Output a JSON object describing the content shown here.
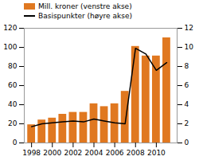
{
  "chart_data": {
    "type": "bar",
    "x": [
      1998,
      1999,
      2000,
      2001,
      2002,
      2003,
      2004,
      2005,
      2006,
      2007,
      2008,
      2009,
      2010,
      2011
    ],
    "series": [
      {
        "name": "Mill. kroner (venstre akse)",
        "type": "bar",
        "color": "#e07820",
        "values": [
          19,
          24,
          26,
          30,
          32,
          32,
          41,
          38,
          41,
          54,
          101,
          91,
          91,
          110
        ]
      },
      {
        "name": "Basispunkter (høyre akse)",
        "type": "line",
        "color": "#000000",
        "axis": "y2",
        "values": [
          1.7,
          2.0,
          2.1,
          2.2,
          2.3,
          2.2,
          2.5,
          2.3,
          2.1,
          2.0,
          9.9,
          9.3,
          7.6,
          8.4
        ]
      }
    ],
    "xlim": [
      1997.3,
      2012
    ],
    "xticks": [
      1998,
      2000,
      2002,
      2004,
      2006,
      2008,
      2010
    ],
    "ylim": [
      0,
      120
    ],
    "yticks": [
      0,
      20,
      40,
      60,
      80,
      100,
      120
    ],
    "y2lim": [
      0,
      12
    ],
    "y2ticks": [
      0,
      2,
      4,
      6,
      8,
      10,
      12
    ],
    "legend": "upper left",
    "grid": false
  }
}
